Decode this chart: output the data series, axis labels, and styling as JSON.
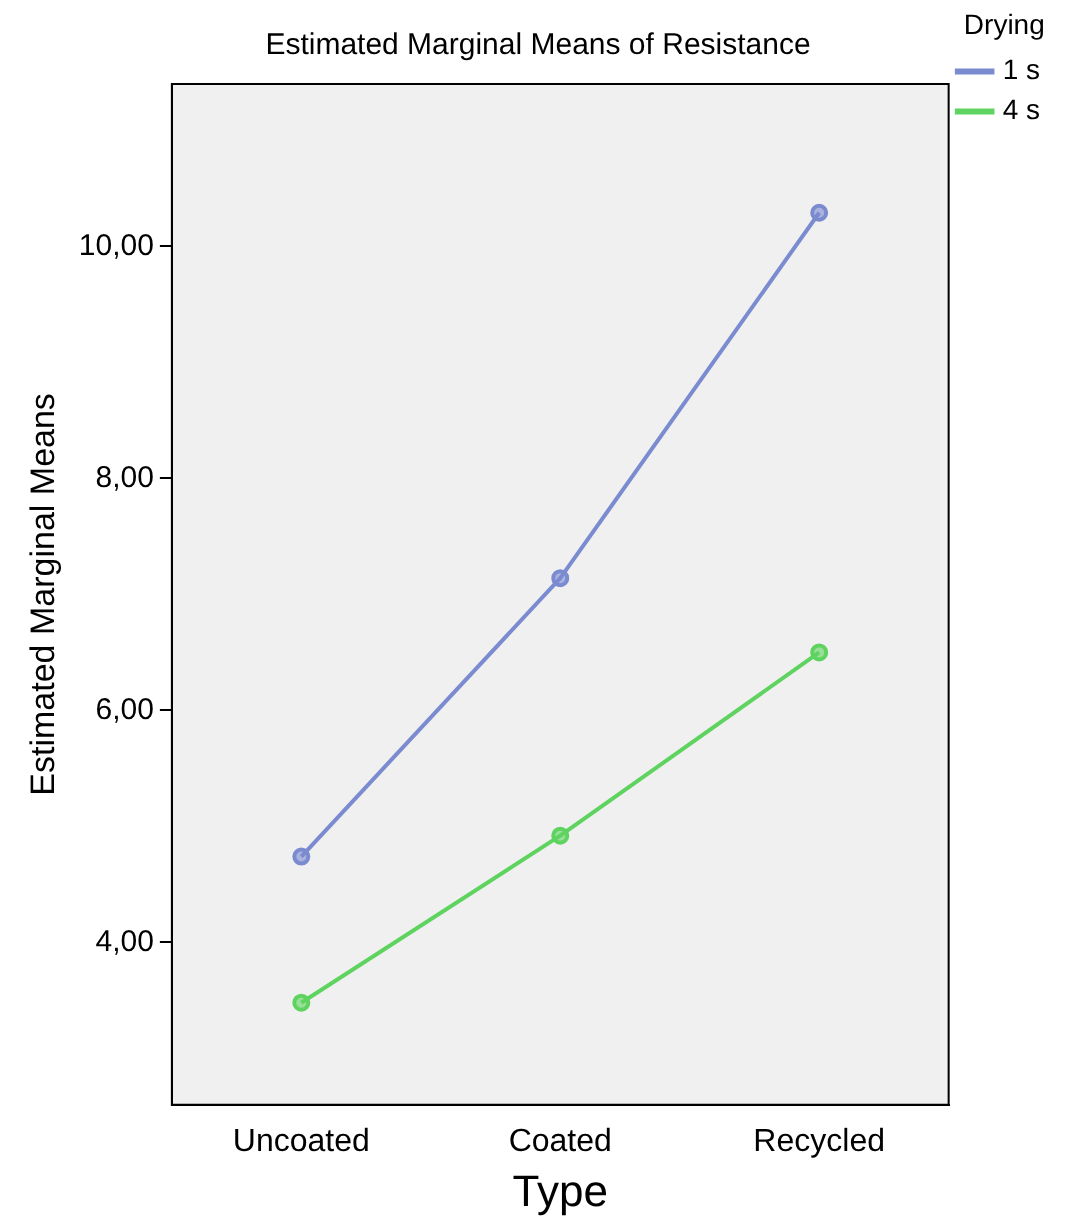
{
  "chart_data": {
    "type": "line",
    "title": "Estimated Marginal Means of Resistance",
    "xlabel": "Type",
    "ylabel": "Estimated Marginal Means",
    "legend_title": "Drying",
    "categories": [
      "Uncoated",
      "Coated",
      "Recycled"
    ],
    "series": [
      {
        "name": "1 s",
        "color": "#7b8bd0",
        "values": [
          4.74,
          7.14,
          10.29
        ]
      },
      {
        "name": "4 s",
        "color": "#5fd35f",
        "values": [
          3.48,
          4.92,
          6.5
        ]
      }
    ],
    "ylim": [
      2.6,
      11.4
    ],
    "yticks": [
      {
        "value": 4,
        "label": "4,00"
      },
      {
        "value": 6,
        "label": "6,00"
      },
      {
        "value": 8,
        "label": "8,00"
      },
      {
        "value": 10,
        "label": "10,00"
      }
    ],
    "grid": false,
    "legend": "top right",
    "marker": "circle",
    "line_style": "solid"
  }
}
